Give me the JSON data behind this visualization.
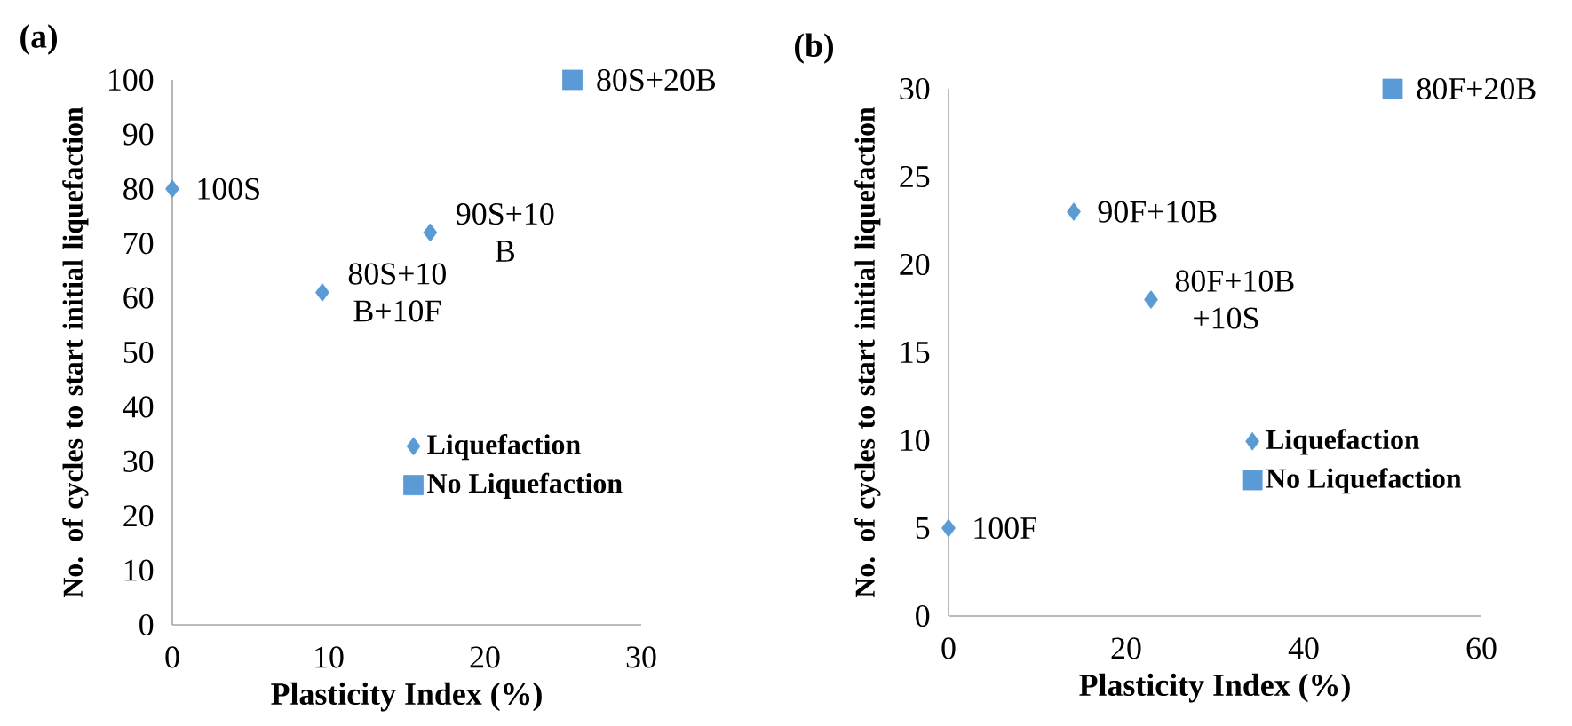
{
  "chart_data": [
    {
      "type": "scatter",
      "title": "(a)",
      "xlabel": "Plasticity Index  (%)",
      "ylabel": "No. of cycles to start initial liquefaction",
      "xlim": [
        0,
        30
      ],
      "xticks": [
        0,
        10,
        20,
        30
      ],
      "ylim": [
        0,
        100
      ],
      "yticks": [
        0,
        10,
        20,
        30,
        40,
        50,
        60,
        70,
        80,
        90,
        100
      ],
      "legend": "right",
      "grid": false,
      "series": [
        {
          "name": "Liquefaction",
          "color": "#5b9bd5",
          "marker": "diamond",
          "x": [
            0,
            9.6,
            16.5
          ],
          "values": [
            80,
            61,
            72
          ]
        },
        {
          "name": "No Liquefaction",
          "color": "#5b9bd5",
          "marker": "square",
          "x": [
            25.6
          ],
          "values": [
            100
          ]
        }
      ],
      "annotations": [
        {
          "text": "100S",
          "x": 0,
          "y": 80
        },
        {
          "text": "80S+10 B+10F",
          "x": 9.6,
          "y": 61
        },
        {
          "text": "90S+10 B",
          "x": 16.5,
          "y": 72
        },
        {
          "text": "80S+20B",
          "x": 25.6,
          "y": 100
        }
      ]
    },
    {
      "type": "scatter",
      "title": "(b)",
      "xlabel": "Plasticity Index  (%)",
      "ylabel": "No. of cycles to start initial liquefaction",
      "xlim": [
        0,
        60
      ],
      "xticks": [
        0,
        20,
        40,
        60
      ],
      "ylim": [
        0,
        30
      ],
      "yticks": [
        0,
        5,
        10,
        15,
        20,
        25,
        30
      ],
      "legend": "right",
      "grid": false,
      "series": [
        {
          "name": "Liquefaction",
          "color": "#5b9bd5",
          "marker": "diamond",
          "x": [
            0,
            14.1,
            22.8
          ],
          "values": [
            5,
            23,
            18
          ]
        },
        {
          "name": "No Liquefaction",
          "color": "#5b9bd5",
          "marker": "square",
          "x": [
            50
          ],
          "values": [
            30
          ]
        }
      ],
      "annotations": [
        {
          "text": "100F",
          "x": 0,
          "y": 5
        },
        {
          "text": "90F+10B",
          "x": 14.1,
          "y": 23
        },
        {
          "text": "80F+10B +10S",
          "x": 22.8,
          "y": 18
        },
        {
          "text": "80F+20B",
          "x": 50,
          "y": 30
        }
      ]
    }
  ]
}
